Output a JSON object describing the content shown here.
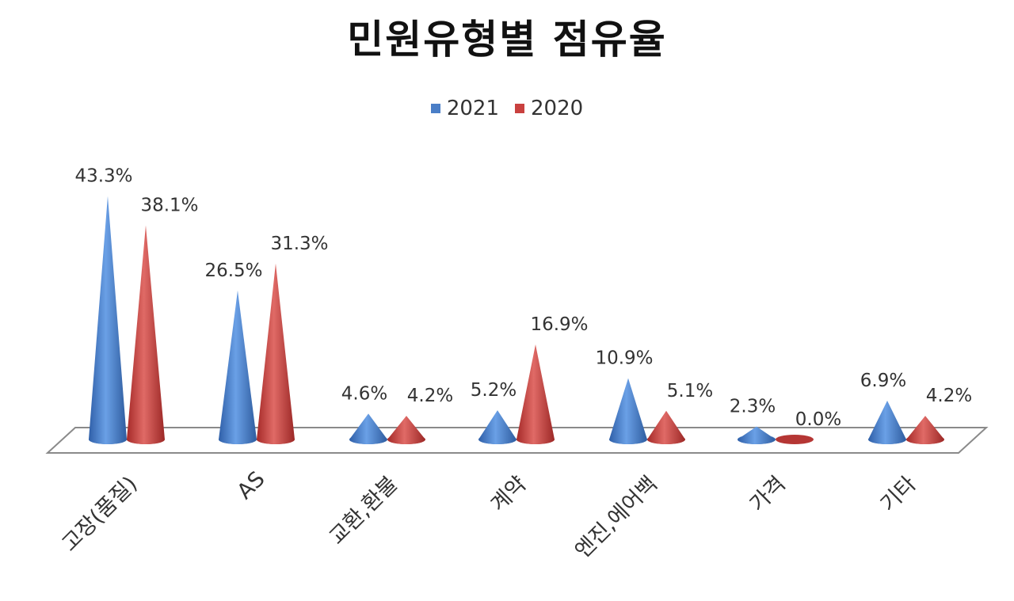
{
  "title": "민원유형별 점유율",
  "legend": [
    {
      "label": "2021",
      "color": "#4a7ec7"
    },
    {
      "label": "2020",
      "color": "#c9413f"
    }
  ],
  "chart_data": {
    "type": "bar",
    "subtype": "3d-cone",
    "title": "민원유형별 점유율",
    "xlabel": "",
    "ylabel": "",
    "categories": [
      "고장(품질)",
      "AS",
      "교환,환불",
      "계약",
      "엔진,에어백",
      "가격",
      "기타"
    ],
    "series": [
      {
        "name": "2021",
        "color": "#4a7ec7",
        "values": [
          43.3,
          26.5,
          4.6,
          5.2,
          10.9,
          2.3,
          6.9
        ],
        "labels": [
          "43.3%",
          "26.5%",
          "4.6%",
          "5.2%",
          "10.9%",
          "2.3%",
          "6.9%"
        ]
      },
      {
        "name": "2020",
        "color": "#c9413f",
        "values": [
          38.1,
          31.3,
          4.2,
          16.9,
          5.1,
          0.0,
          4.2
        ],
        "labels": [
          "38.1%",
          "31.3%",
          "4.2%",
          "16.9%",
          "5.1%",
          "0.0%",
          "4.2%"
        ]
      }
    ],
    "value_format": "percent",
    "legend_position": "top",
    "grid": false,
    "axis_visible": false
  }
}
